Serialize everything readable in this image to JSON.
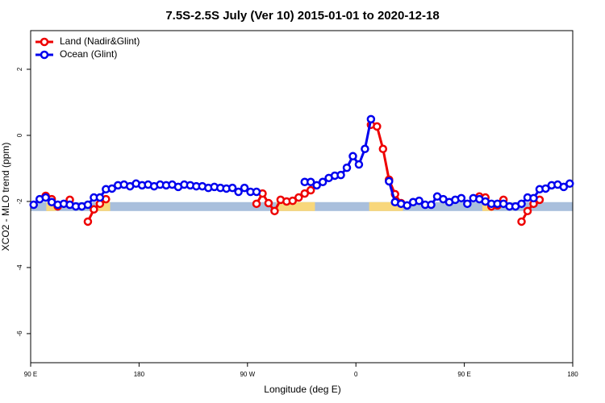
{
  "chart_data": {
    "type": "line",
    "title": "7.5S-2.5S July (Ver 10)   2015-01-01 to 2020-12-18",
    "x_label": "Longitude (deg E)",
    "y_label": "XCO2 - MLO trend (ppm)",
    "xlim": [
      90,
      540
    ],
    "ylim": [
      -6.88,
      3.17
    ],
    "xticks": [
      {
        "value": 90,
        "label": "90 E"
      },
      180,
      {
        "value": 270,
        "label": "90 W"
      },
      {
        "value": 360,
        "label": "0"
      },
      {
        "value": 450,
        "label": "90 E"
      },
      {
        "value": 540,
        "label": "180"
      }
    ],
    "yticks": [
      -6,
      -4,
      -2,
      0,
      2
    ],
    "legend": "top-left",
    "background_band": {
      "ylim": [
        -2.29,
        -2.02
      ],
      "color": "#a9bfdc",
      "land_color": "#f8d77b",
      "land_spans": [
        [
          103,
          111
        ],
        [
          144,
          156
        ],
        [
          294,
          326
        ],
        [
          371,
          399
        ],
        [
          465,
          474
        ]
      ]
    },
    "x": [
      92.5,
      97.5,
      102.5,
      107.5,
      112.5,
      117.5,
      122.5,
      127.5,
      132.5,
      137.5,
      142.5,
      147.5,
      152.5,
      157.5,
      162.5,
      167.5,
      172.5,
      177.5,
      182.5,
      187.5,
      192.5,
      197.5,
      202.5,
      207.5,
      212.5,
      217.5,
      222.5,
      227.5,
      232.5,
      237.5,
      242.5,
      247.5,
      252.5,
      257.5,
      262.5,
      267.5,
      272.5,
      277.5,
      282.5,
      287.5,
      292.5,
      297.5,
      302.5,
      307.5,
      312.5,
      317.5,
      322.5,
      327.5,
      332.5,
      337.5,
      342.5,
      347.5,
      352.5,
      357.5,
      362.5,
      367.5,
      372.5,
      377.5,
      382.5,
      387.5,
      392.5,
      397.5,
      402.5,
      407.5,
      412.5,
      417.5,
      422.5,
      427.5,
      432.5,
      437.5,
      442.5,
      447.5,
      452.5,
      457.5,
      462.5,
      467.5,
      472.5,
      477.5,
      482.5,
      487.5,
      492.5,
      497.5,
      502.5,
      507.5,
      512.5,
      517.5,
      522.5,
      527.5,
      532.5,
      537.5
    ],
    "series": [
      {
        "name": "Land (Nadir&Glint)",
        "color": "#ee0000",
        "values": [
          null,
          null,
          -1.83,
          -1.93,
          -2.15,
          null,
          -1.95,
          null,
          null,
          -2.61,
          -2.24,
          -2.07,
          -1.93,
          null,
          null,
          null,
          null,
          null,
          null,
          null,
          null,
          null,
          null,
          null,
          null,
          null,
          null,
          null,
          null,
          null,
          null,
          null,
          null,
          null,
          null,
          null,
          null,
          -2.07,
          -1.76,
          -2.05,
          -2.29,
          -1.95,
          -2.0,
          -1.98,
          -1.88,
          -1.76,
          -1.66,
          null,
          null,
          null,
          null,
          null,
          null,
          null,
          null,
          null,
          0.32,
          0.27,
          -0.41,
          -1.34,
          -1.78,
          -2.05,
          null,
          null,
          null,
          null,
          null,
          null,
          null,
          null,
          null,
          null,
          null,
          null,
          -1.85,
          -1.88,
          -2.15,
          -2.12,
          -1.95,
          null,
          null,
          -2.61,
          -2.29,
          -2.07,
          -1.95,
          null,
          null,
          null,
          null,
          null
        ]
      },
      {
        "name": "Ocean (Glint)",
        "color": "#0000ee",
        "values": [
          -2.1,
          -1.93,
          -1.88,
          -2.02,
          -2.1,
          -2.07,
          -2.1,
          -2.15,
          -2.15,
          -2.1,
          -1.88,
          -1.88,
          -1.63,
          -1.61,
          -1.51,
          -1.49,
          -1.54,
          -1.46,
          -1.51,
          -1.49,
          -1.54,
          -1.49,
          -1.51,
          -1.49,
          -1.56,
          -1.49,
          -1.51,
          -1.54,
          -1.54,
          -1.59,
          -1.56,
          -1.59,
          -1.61,
          -1.59,
          -1.71,
          -1.59,
          -1.71,
          -1.71,
          null,
          null,
          null,
          null,
          null,
          null,
          null,
          -1.41,
          -1.41,
          -1.51,
          -1.41,
          -1.29,
          -1.22,
          -1.2,
          -0.98,
          -0.63,
          -0.88,
          -0.41,
          0.49,
          null,
          null,
          -1.39,
          -2.02,
          -2.07,
          -2.12,
          -2.02,
          -1.98,
          -2.1,
          -2.1,
          -1.85,
          -1.93,
          -2.02,
          -1.95,
          -1.9,
          -2.07,
          -1.9,
          -1.93,
          -2.0,
          -2.07,
          -2.07,
          -2.07,
          -2.15,
          -2.15,
          -2.07,
          -1.88,
          -1.9,
          -1.63,
          -1.61,
          -1.51,
          -1.49,
          -1.56,
          -1.46
        ]
      }
    ]
  }
}
